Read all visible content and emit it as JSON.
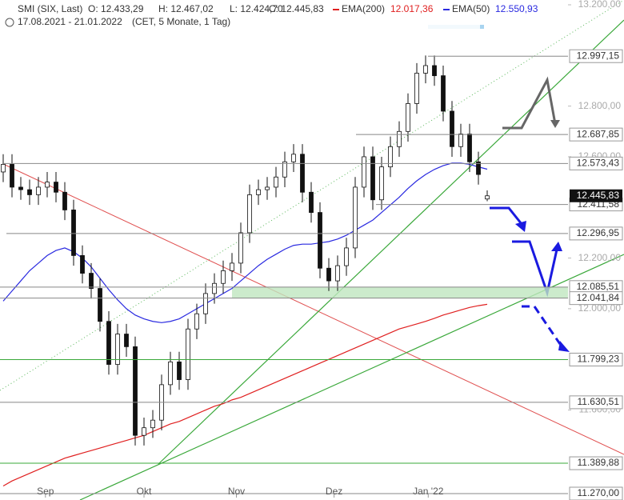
{
  "chart_data": {
    "type": "candlestick",
    "title": "SMI (SIX, Last)",
    "ohlc_labels": [
      "O: 12.433,29",
      "H: 12.467,02",
      "L: 12.424,70",
      "C: 12.445,83"
    ],
    "subtitle": "17.08.2021 - 21.01.2022",
    "subtitle_note": "(CET, 5 Monate, 1 Tag)",
    "open": [
      12540,
      12570,
      12480,
      12470,
      12450,
      12480,
      12500,
      12460,
      12390,
      12210,
      12140,
      12080,
      11950,
      11780,
      11900,
      11850,
      11500,
      11530,
      11560,
      11700,
      11790,
      11720,
      11920,
      11980,
      12060,
      12100,
      12150,
      12180,
      12300,
      12450,
      12470,
      12480,
      12520,
      12580,
      12610,
      12460,
      12380,
      12160,
      12110,
      12170,
      12240,
      12480,
      12600,
      12430,
      12560,
      12640,
      12700,
      12810,
      12930,
      12960,
      12920,
      12780,
      12640,
      12690,
      12580,
      12433.29
    ],
    "high": [
      12610,
      12610,
      12520,
      12510,
      12520,
      12540,
      12540,
      12500,
      12430,
      12250,
      12180,
      12120,
      11990,
      11940,
      11940,
      11890,
      11570,
      11600,
      11740,
      11830,
      11830,
      11960,
      12020,
      12100,
      12140,
      12190,
      12220,
      12340,
      12490,
      12510,
      12520,
      12560,
      12620,
      12650,
      12650,
      12500,
      12420,
      12200,
      12210,
      12280,
      12520,
      12640,
      12640,
      12600,
      12680,
      12740,
      12850,
      12970,
      13000,
      13000,
      12960,
      12820,
      12730,
      12730,
      12620,
      12467.02
    ],
    "low": [
      12500,
      12440,
      12430,
      12410,
      12410,
      12440,
      12420,
      12350,
      12170,
      12100,
      12040,
      11910,
      11740,
      11740,
      11810,
      11460,
      11460,
      11490,
      11520,
      11660,
      11680,
      11680,
      11880,
      11940,
      12020,
      12060,
      12110,
      12140,
      12260,
      12410,
      12430,
      12440,
      12480,
      12540,
      12420,
      12340,
      12120,
      12070,
      12070,
      12130,
      12200,
      12440,
      12390,
      12390,
      12520,
      12600,
      12660,
      12770,
      12890,
      12880,
      12740,
      12600,
      12600,
      12540,
      12490,
      12424.7
    ],
    "close": [
      12570,
      12480,
      12470,
      12450,
      12480,
      12500,
      12460,
      12390,
      12210,
      12140,
      12080,
      11950,
      11780,
      11900,
      11850,
      11500,
      11530,
      11560,
      11700,
      11790,
      11720,
      11920,
      11980,
      12060,
      12100,
      12150,
      12180,
      12300,
      12450,
      12470,
      12480,
      12520,
      12580,
      12610,
      12460,
      12380,
      12160,
      12110,
      12170,
      12240,
      12480,
      12600,
      12430,
      12560,
      12640,
      12700,
      12810,
      12930,
      12960,
      12920,
      12780,
      12640,
      12690,
      12580,
      12530,
      12445.83
    ],
    "series": [
      {
        "name": "EMA(200)",
        "value_label": "12.017,36",
        "color": "#e02020",
        "values": [
          11300,
          11320,
          11335,
          11350,
          11365,
          11380,
          11395,
          11410,
          11420,
          11430,
          11440,
          11450,
          11460,
          11470,
          11480,
          11490,
          11500,
          11515,
          11530,
          11545,
          11555,
          11570,
          11585,
          11600,
          11615,
          11625,
          11640,
          11650,
          11665,
          11680,
          11695,
          11710,
          11725,
          11740,
          11755,
          11770,
          11785,
          11800,
          11815,
          11830,
          11845,
          11860,
          11875,
          11890,
          11905,
          11920,
          11930,
          11940,
          11950,
          11962,
          11975,
          11985,
          11995,
          12005,
          12012,
          12017.36
        ]
      },
      {
        "name": "EMA(50)",
        "value_label": "12.550,93",
        "color": "#2a2ae0",
        "values": [
          12030,
          12070,
          12110,
          12150,
          12180,
          12210,
          12230,
          12240,
          12225,
          12200,
          12165,
          12120,
          12075,
          12035,
          12000,
          11975,
          11960,
          11950,
          11945,
          11950,
          11960,
          11980,
          12000,
          12020,
          12040,
          12060,
          12080,
          12110,
          12140,
          12170,
          12195,
          12215,
          12235,
          12250,
          12255,
          12255,
          12260,
          12265,
          12275,
          12290,
          12310,
          12330,
          12350,
          12380,
          12410,
          12440,
          12475,
          12505,
          12530,
          12550,
          12565,
          12575,
          12575,
          12570,
          12560,
          12550.93
        ]
      }
    ],
    "ylim": [
      11270,
      13200
    ],
    "yticks": [
      {
        "value": 13200,
        "label": "13.200,00"
      },
      {
        "value": 12800,
        "label": "12.800,00"
      },
      {
        "value": 12600,
        "label": "12.600,00"
      },
      {
        "value": 12200,
        "label": "12.200,00"
      },
      {
        "value": 12000,
        "label": "12.000,00"
      },
      {
        "value": 11600,
        "label": "11.600,00"
      }
    ],
    "xticks": [
      {
        "value": 4.8,
        "label": "Sep"
      },
      {
        "value": 16,
        "label": "Okt"
      },
      {
        "value": 26.5,
        "label": "Nov"
      },
      {
        "value": 37.6,
        "label": "Dez"
      },
      {
        "value": 48.3,
        "label": "Jan '22"
      }
    ],
    "last_price": {
      "value": 12445.83,
      "label": "12.445,83"
    },
    "levels": [
      {
        "value": 12997.15,
        "label": "12.997,15",
        "color": "#888888"
      },
      {
        "value": 12687.85,
        "label": "12.687,85",
        "color": "#888888"
      },
      {
        "value": 12573.43,
        "label": "12.573,43",
        "color": "#888888"
      },
      {
        "value": 12411.58,
        "label": "12.411,58",
        "color": "#888888"
      },
      {
        "value": 12296.95,
        "label": "12.296,95",
        "color": "#888888"
      },
      {
        "value": 12085.51,
        "label": "12.085,51",
        "color": "#888888"
      },
      {
        "value": 12041.84,
        "label": "12.041,84",
        "color": "#888888"
      },
      {
        "value": 11799.23,
        "label": "11.799,23",
        "color": "#3aa83a"
      },
      {
        "value": 11630.51,
        "label": "11.630,51",
        "color": "#888888"
      },
      {
        "value": 11389.88,
        "label": "11.389,88",
        "color": "#3aa83a"
      },
      {
        "value": 11270,
        "label": "11.270,00",
        "color": "#888888"
      }
    ]
  }
}
